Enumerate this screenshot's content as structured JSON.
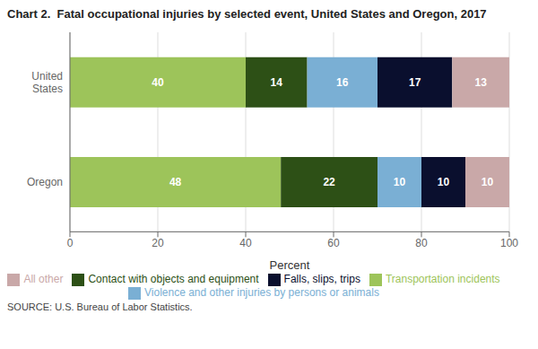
{
  "chart_data": {
    "type": "bar",
    "title": "Chart 2.  Fatal occupational injuries by selected event, United States and Oregon, 2017",
    "source": "SOURCE: U.S. Bureau of Labor Statistics.",
    "orientation": "horizontal",
    "stacked": true,
    "data_labels": true,
    "grid": true,
    "legend": "bottom",
    "categories": [
      "United\nStates",
      "Oregon"
    ],
    "series": [
      {
        "name": "Transportation incidents",
        "color": "#9dc45a",
        "values": [
          40,
          48
        ]
      },
      {
        "name": "Contact with objects and equipment",
        "color": "#2d5016",
        "values": [
          14,
          22
        ]
      },
      {
        "name": "Violence and other injuries by persons or animals",
        "color": "#7aafd4",
        "values": [
          16,
          10
        ]
      },
      {
        "name": "Falls, slips, trips",
        "color": "#0a0f2e",
        "values": [
          17,
          10
        ]
      },
      {
        "name": "All other",
        "color": "#c9a8a8",
        "values": [
          13,
          10
        ]
      }
    ],
    "xlabel": "Percent",
    "xlim": [
      0,
      100
    ],
    "xticks": [
      0,
      20,
      40,
      60,
      80,
      100
    ]
  }
}
